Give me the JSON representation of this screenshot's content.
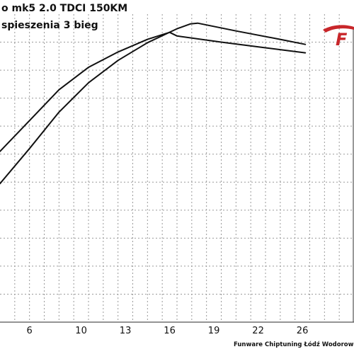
{
  "chart_data": {
    "type": "line",
    "title": "o mk5 2.0 TDCI 150KM",
    "subtitle": "spieszenia 3 bieg",
    "footer": "Funware Chiptuning Łódź Wodorowan",
    "logo_text": "F",
    "colors": {
      "line": "#111111",
      "grid": "#9a9a9a",
      "logo": "#c8262a"
    },
    "xlim": [
      4,
      28
    ],
    "ylim": [
      0,
      11
    ],
    "x_ticks": [
      6,
      10,
      13,
      16,
      19,
      22,
      26
    ],
    "x_tick_positions": [
      6,
      9.5,
      12.5,
      15.5,
      18.5,
      21.5,
      24.5
    ],
    "grid": true,
    "series": [
      {
        "points": [
          [
            4,
            6.1
          ],
          [
            6,
            7.2
          ],
          [
            8,
            8.3
          ],
          [
            10,
            9.1
          ],
          [
            12,
            9.65
          ],
          [
            14,
            10.1
          ],
          [
            15.5,
            10.35
          ],
          [
            16,
            10.22
          ],
          [
            19,
            10.0
          ],
          [
            22,
            9.8
          ],
          [
            24.7,
            9.62
          ]
        ]
      },
      {
        "points": [
          [
            4,
            4.95
          ],
          [
            6,
            6.2
          ],
          [
            8,
            7.5
          ],
          [
            10,
            8.55
          ],
          [
            12,
            9.35
          ],
          [
            14,
            9.98
          ],
          [
            16,
            10.48
          ],
          [
            16.9,
            10.65
          ],
          [
            17.4,
            10.68
          ],
          [
            20,
            10.4
          ],
          [
            23,
            10.1
          ],
          [
            24.7,
            9.92
          ]
        ]
      }
    ]
  }
}
